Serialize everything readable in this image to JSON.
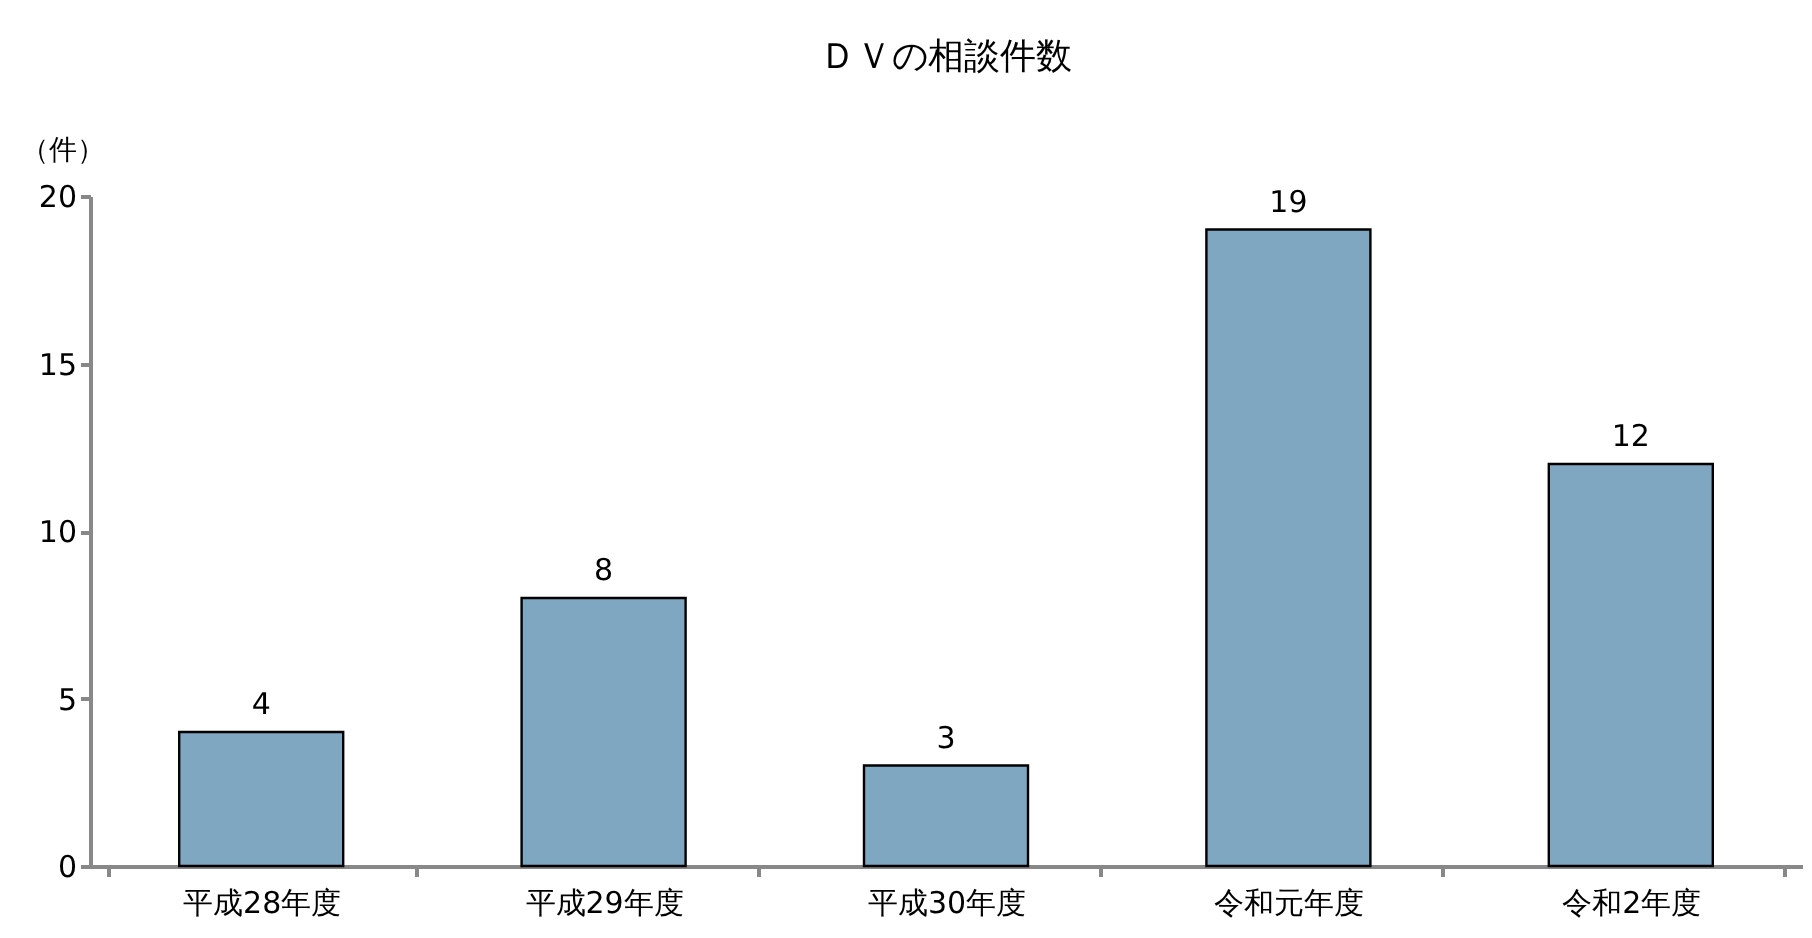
{
  "chart_data": {
    "type": "bar",
    "title": "ＤＶの相談件数",
    "ylabel": "（件）",
    "categories": [
      "平成28年度",
      "平成29年度",
      "平成30年度",
      "令和元年度",
      "令和2年度"
    ],
    "values": [
      4,
      8,
      3,
      19,
      12
    ],
    "color": "#7fa7c2",
    "ylim": [
      0,
      20
    ],
    "yticks": [
      0,
      5,
      10,
      15,
      20
    ],
    "grid": false,
    "data_labels": true
  }
}
